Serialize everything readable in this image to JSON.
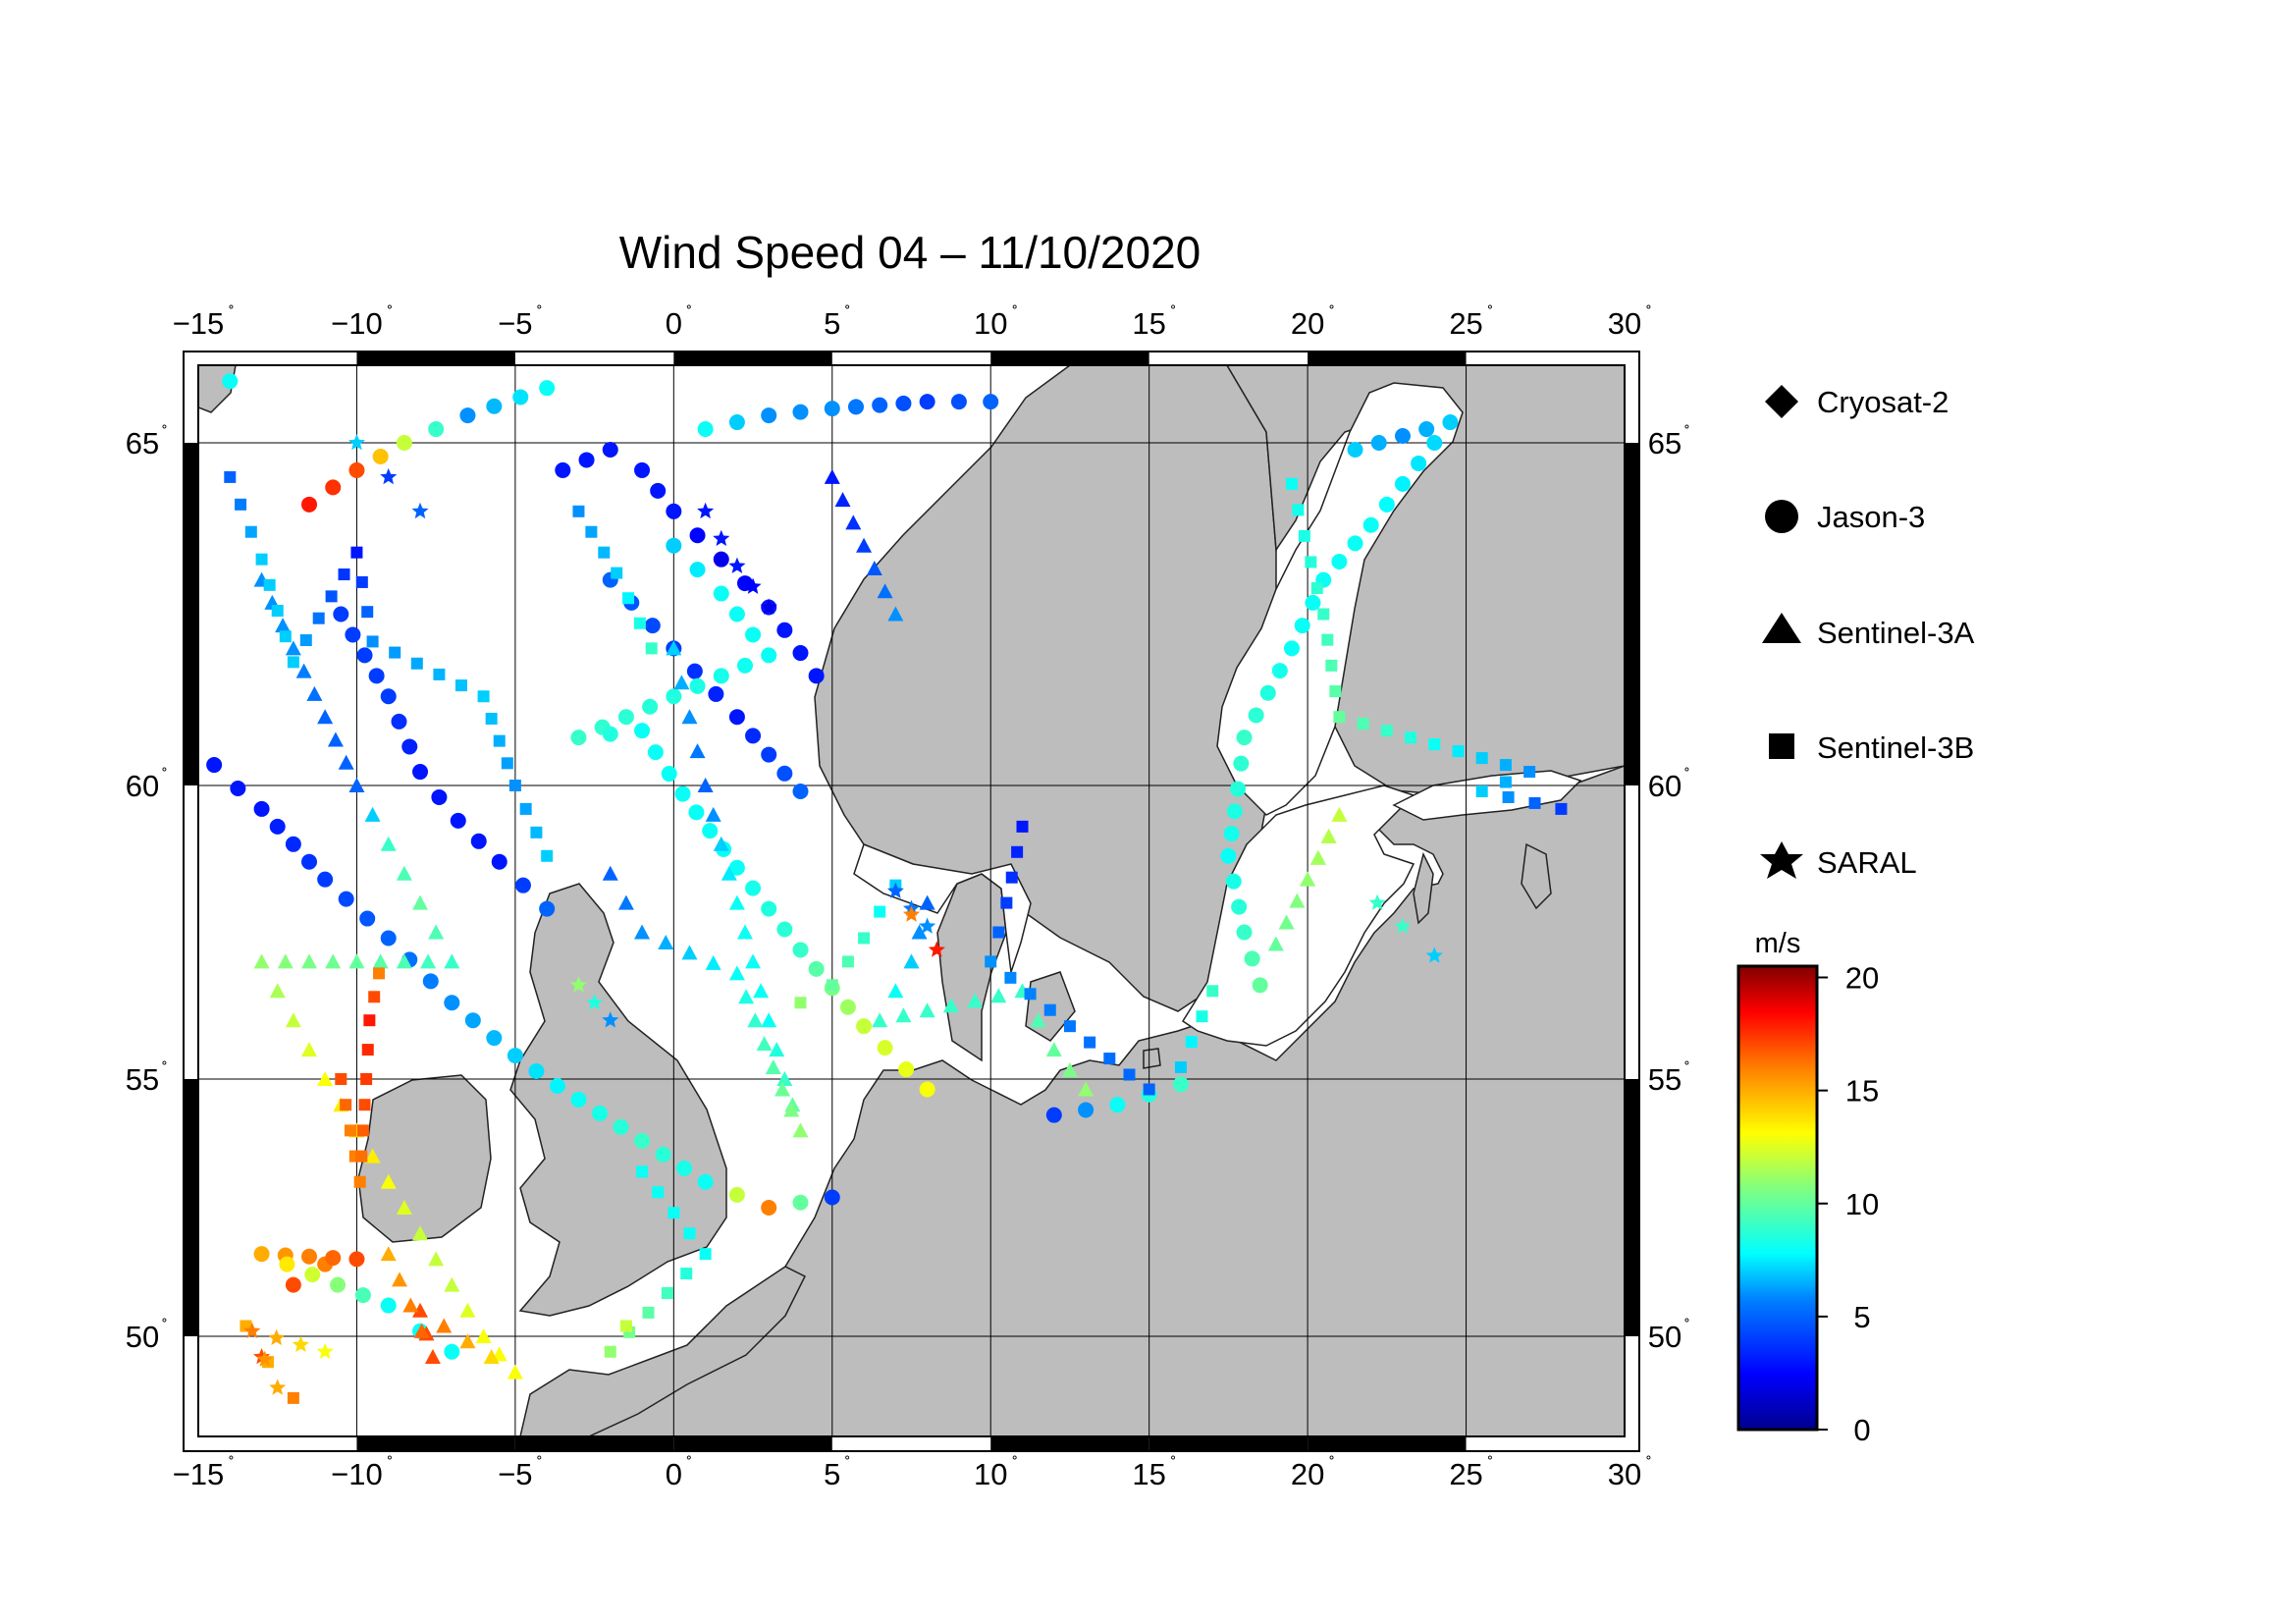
{
  "title": "Wind Speed 04 – 11/10/2020",
  "map": {
    "lon_range": [
      -15,
      30
    ],
    "lat_range": [
      48.3,
      66.4
    ],
    "lon_ticks": [
      -15,
      -10,
      -5,
      0,
      5,
      10,
      15,
      20,
      25,
      30
    ],
    "lat_ticks": [
      50,
      55,
      60,
      65
    ],
    "lon_labels": [
      "−15",
      "−10",
      "−5",
      "0",
      "5",
      "10",
      "15",
      "20",
      "25",
      "30"
    ],
    "lat_labels": [
      "50",
      "55",
      "60",
      "65"
    ],
    "degree_symbol": "˚",
    "land_color": "#bdbdbd",
    "sea_color": "#ffffff",
    "grid": true
  },
  "legend": {
    "placement": "right",
    "items": [
      {
        "name": "Cryosat-2",
        "marker": "diamond"
      },
      {
        "name": "Jason-3",
        "marker": "circle"
      },
      {
        "name": "Sentinel-3A",
        "marker": "triangle"
      },
      {
        "name": "Sentinel-3B",
        "marker": "square"
      },
      {
        "name": "SARAL",
        "marker": "star"
      }
    ]
  },
  "colorbar": {
    "unit": "m/s",
    "range": [
      0,
      20.5
    ],
    "ticks": [
      0,
      5,
      10,
      15,
      20
    ],
    "tick_labels": [
      "0",
      "5",
      "10",
      "15",
      "20"
    ],
    "colormap": [
      "#00008f",
      "#0000ff",
      "#0080ff",
      "#00ffff",
      "#80ff80",
      "#ffff00",
      "#ff8000",
      "#ff0000",
      "#800000"
    ]
  },
  "chart_data": {
    "type": "scatter",
    "title": "Wind Speed 04 – 11/10/2020",
    "xlabel": "",
    "ylabel": "",
    "xlim": [
      -15,
      30
    ],
    "ylim": [
      48.3,
      66.4
    ],
    "color_variable": "wind speed (m/s)",
    "tracks": [
      {
        "sat": "Jason-3",
        "marker": "circle",
        "points": [
          [
            -11.5,
            64.1,
            18
          ],
          [
            -10,
            64.6,
            17
          ],
          [
            -8.5,
            65.0,
            12
          ],
          [
            -6.5,
            65.4,
            6
          ],
          [
            -4,
            65.8,
            8
          ],
          [
            -14,
            65.9,
            8
          ],
          [
            -10.5,
            62.5,
            4
          ],
          [
            -9,
            61.3,
            4
          ],
          [
            -8,
            60.2,
            3
          ],
          [
            -6.8,
            59.4,
            3
          ],
          [
            -5.5,
            58.7,
            3
          ],
          [
            -4,
            57.9,
            5
          ]
        ]
      },
      {
        "sat": "Jason-3",
        "marker": "circle",
        "points": [
          [
            -3.5,
            64.6,
            3
          ],
          [
            -2,
            64.9,
            3
          ],
          [
            -1,
            64.6,
            3
          ],
          [
            0,
            64.0,
            3
          ],
          [
            1.5,
            63.3,
            2
          ],
          [
            3,
            62.6,
            3
          ],
          [
            4.5,
            61.6,
            3
          ],
          [
            -2,
            63.0,
            5
          ],
          [
            0,
            62.0,
            4
          ],
          [
            2,
            61.0,
            3
          ],
          [
            4,
            59.9,
            5
          ]
        ]
      },
      {
        "sat": "Jason-3",
        "marker": "circle",
        "points": [
          [
            1,
            65.2,
            8
          ],
          [
            3,
            65.4,
            6
          ],
          [
            5,
            65.5,
            6
          ],
          [
            8,
            65.6,
            4
          ],
          [
            10,
            65.6,
            5
          ],
          [
            0,
            63.5,
            7
          ],
          [
            1.5,
            62.8,
            8
          ],
          [
            3,
            61.9,
            8
          ],
          [
            -3,
            60.7,
            9
          ],
          [
            -1,
            60.8,
            8
          ],
          [
            2,
            58.6,
            8
          ],
          [
            4,
            57.2,
            9
          ],
          [
            6,
            55.9,
            12
          ],
          [
            8,
            54.8,
            13
          ]
        ]
      },
      {
        "sat": "Jason-3",
        "marker": "circle",
        "points": [
          [
            -14.5,
            60.3,
            3
          ],
          [
            -13,
            59.6,
            3
          ],
          [
            -11,
            58.4,
            4
          ],
          [
            -9,
            57.4,
            5
          ],
          [
            -7,
            56.3,
            6
          ],
          [
            -5,
            55.4,
            7
          ],
          [
            -3,
            54.6,
            8
          ],
          [
            -1,
            53.8,
            9
          ],
          [
            1,
            53.0,
            8
          ],
          [
            3,
            52.5,
            16
          ],
          [
            5,
            52.7,
            4
          ]
        ]
      },
      {
        "sat": "Jason-3",
        "marker": "circle",
        "points": [
          [
            -12,
            51.0,
            17
          ],
          [
            -11,
            51.4,
            16
          ],
          [
            -10,
            51.5,
            17
          ],
          [
            -13,
            51.6,
            15
          ],
          [
            -9,
            50.6,
            8
          ],
          [
            -8,
            50.1,
            8
          ],
          [
            -7,
            49.7,
            8
          ]
        ]
      },
      {
        "sat": "Jason-3",
        "marker": "circle",
        "points": [
          [
            21.5,
            64.9,
            7
          ],
          [
            23,
            65.1,
            6
          ],
          [
            24.5,
            65.3,
            7
          ],
          [
            22,
            63.8,
            8
          ],
          [
            20.5,
            63.0,
            8
          ],
          [
            19.5,
            62.0,
            8
          ],
          [
            18,
            60.7,
            9
          ],
          [
            17.5,
            58.8,
            8
          ],
          [
            18,
            57.5,
            9
          ],
          [
            18.5,
            56.6,
            10
          ],
          [
            12,
            54.3,
            4
          ],
          [
            14,
            54.5,
            8
          ],
          [
            16,
            54.9,
            9
          ]
        ]
      },
      {
        "sat": "Sentinel-3A",
        "marker": "triangle",
        "points": [
          [
            -13,
            63,
            6
          ],
          [
            -12,
            62,
            6
          ],
          [
            -11,
            61,
            5
          ],
          [
            -10,
            60,
            5
          ],
          [
            -9,
            59,
            9
          ],
          [
            -8,
            58,
            10
          ],
          [
            -7,
            57,
            9
          ],
          [
            -13,
            57,
            11
          ],
          [
            -12,
            56,
            12
          ],
          [
            -11,
            55,
            13
          ],
          [
            -10,
            54,
            14
          ],
          [
            -9,
            53,
            13
          ],
          [
            -8,
            52,
            12
          ],
          [
            -7,
            51,
            12
          ],
          [
            -6,
            50,
            13
          ],
          [
            -5,
            49.3,
            13
          ],
          [
            -8,
            50.5,
            17
          ],
          [
            -7.6,
            49.6,
            17
          ],
          [
            -9,
            51.6,
            15
          ]
        ]
      },
      {
        "sat": "Sentinel-3A",
        "marker": "triangle",
        "points": [
          [
            0,
            62,
            7
          ],
          [
            0.5,
            61,
            6
          ],
          [
            1,
            60,
            5
          ],
          [
            1.5,
            59,
            7
          ],
          [
            2,
            58,
            8
          ],
          [
            2.5,
            57,
            8
          ],
          [
            3,
            56,
            8
          ],
          [
            3.5,
            55,
            9
          ],
          [
            4,
            54,
            11
          ],
          [
            2,
            56.8,
            8
          ],
          [
            -1,
            57.5,
            6
          ],
          [
            -2,
            58.5,
            5
          ]
        ]
      },
      {
        "sat": "Sentinel-3A",
        "marker": "triangle",
        "points": [
          [
            5,
            64.5,
            3
          ],
          [
            6,
            63.5,
            4
          ],
          [
            7,
            62.5,
            6
          ],
          [
            8,
            58,
            5
          ],
          [
            7.5,
            57,
            7
          ],
          [
            6.5,
            56,
            9
          ],
          [
            11,
            56.5,
            9
          ],
          [
            12,
            55.5,
            10
          ],
          [
            13,
            54.8,
            11
          ],
          [
            20,
            58.4,
            11
          ],
          [
            21,
            59.5,
            12
          ],
          [
            19,
            57.3,
            10
          ]
        ]
      },
      {
        "sat": "Sentinel-3B",
        "marker": "square",
        "points": [
          [
            -14,
            64.5,
            5
          ],
          [
            -13,
            63.3,
            7
          ],
          [
            -12,
            61.8,
            7
          ],
          [
            -10,
            63.4,
            3
          ],
          [
            -9.5,
            62.1,
            6
          ],
          [
            -6,
            61.3,
            7
          ],
          [
            -5,
            60.0,
            6
          ],
          [
            -4,
            58.8,
            7
          ],
          [
            -3,
            64.0,
            6
          ],
          [
            -1.8,
            63.1,
            7
          ],
          [
            -0.7,
            62.0,
            9
          ],
          [
            4,
            56.3,
            11
          ],
          [
            5,
            56.6,
            10
          ],
          [
            6,
            57.4,
            9
          ],
          [
            7,
            58.3,
            7
          ]
        ]
      },
      {
        "sat": "Sentinel-3B",
        "marker": "square",
        "points": [
          [
            -13.5,
            50.2,
            15
          ],
          [
            -12.8,
            49.5,
            15
          ],
          [
            -12,
            48.8,
            16
          ],
          [
            -10.5,
            55.0,
            17
          ],
          [
            -10.2,
            54.0,
            16
          ],
          [
            -9.9,
            53.0,
            16
          ],
          [
            -9.6,
            56.0,
            18
          ],
          [
            -9.3,
            56.8,
            16
          ],
          [
            -1,
            53.2,
            8
          ],
          [
            0,
            52.4,
            8
          ],
          [
            1,
            51.6,
            8
          ],
          [
            -2,
            49.7,
            11
          ],
          [
            -1.5,
            50.2,
            12
          ]
        ]
      },
      {
        "sat": "Sentinel-3B",
        "marker": "square",
        "points": [
          [
            19.5,
            64.4,
            8
          ],
          [
            20.5,
            62.5,
            9
          ],
          [
            21,
            61,
            10
          ],
          [
            27,
            60.2,
            6
          ],
          [
            25.5,
            59.9,
            7
          ],
          [
            28,
            59.6,
            4
          ],
          [
            11,
            59.3,
            3
          ],
          [
            10.5,
            58.0,
            4
          ],
          [
            10,
            57.0,
            6
          ],
          [
            15,
            54.8,
            5
          ],
          [
            16,
            55.2,
            7
          ],
          [
            17,
            56.5,
            9
          ]
        ]
      },
      {
        "sat": "SARAL",
        "marker": "star",
        "points": [
          [
            -10,
            65,
            7
          ],
          [
            -9,
            64.5,
            4
          ],
          [
            -8,
            64,
            5
          ],
          [
            1,
            64,
            3
          ],
          [
            2,
            63.2,
            3
          ],
          [
            3,
            62.6,
            2
          ],
          [
            7,
            58.2,
            5
          ],
          [
            8,
            57.6,
            6
          ],
          [
            8.3,
            57.2,
            18
          ],
          [
            7.5,
            57.8,
            16
          ],
          [
            -13,
            49.6,
            17
          ],
          [
            -12.5,
            49.0,
            15
          ],
          [
            -13.3,
            50.1,
            16
          ],
          [
            -11,
            49.7,
            13
          ],
          [
            22.2,
            58.0,
            9
          ],
          [
            23,
            57.6,
            9
          ],
          [
            24,
            57.1,
            7
          ],
          [
            -3,
            56.6,
            11
          ],
          [
            -2,
            56.0,
            6
          ]
        ]
      }
    ]
  }
}
